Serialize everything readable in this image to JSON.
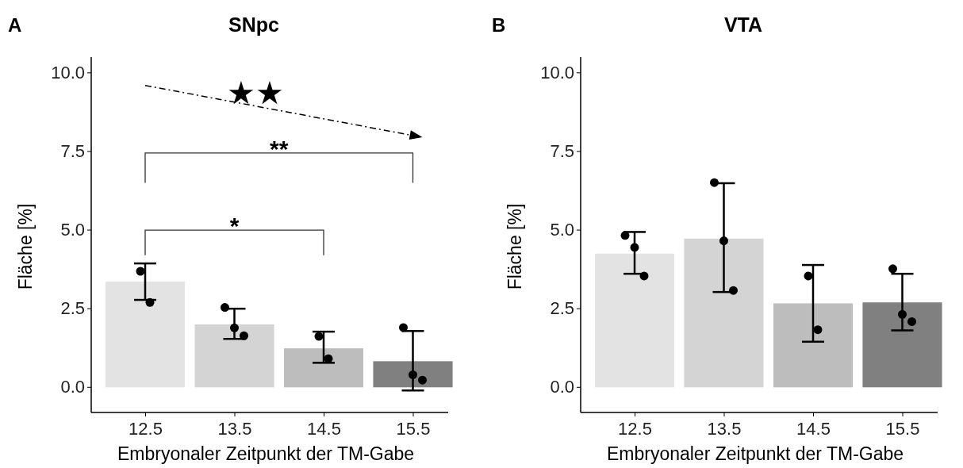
{
  "chart_data": [
    {
      "type": "bar",
      "title": "SNpc",
      "xlabel": "Embryonaler Zeitpunkt der TM-Gabe",
      "ylabel": "Fläche [%]",
      "categories": [
        "12.5",
        "13.5",
        "14.5",
        "15.5"
      ],
      "series": [
        {
          "type": "bar",
          "values": [
            3.36,
            2.0,
            1.24,
            0.83
          ],
          "colors": [
            "#e3e3e3",
            "#d4d4d4",
            "#bdbdbd",
            "#808080"
          ],
          "errors": [
            [
              2.78,
              3.94
            ],
            [
              1.54,
              2.5
            ],
            [
              0.78,
              1.77
            ],
            [
              -0.1,
              1.79
            ]
          ]
        },
        {
          "type": "scatter",
          "color": "#000000",
          "x": [
            "12.5",
            "12.5",
            "13.5",
            "13.5",
            "13.5",
            "14.5",
            "14.5",
            "15.5",
            "15.5",
            "15.5"
          ],
          "values": [
            3.69,
            2.7,
            2.54,
            1.89,
            1.64,
            1.62,
            0.91,
            1.9,
            0.4,
            0.23
          ]
        }
      ],
      "ylim": [
        -0.8,
        10.5
      ],
      "yticks": [
        {
          "value": 0,
          "label": "0.0"
        },
        {
          "value": 2.5,
          "label": "2.5"
        },
        {
          "value": 5,
          "label": "5.0"
        },
        {
          "value": 7.5,
          "label": "7.5"
        },
        {
          "value": 10,
          "label": "10.0"
        }
      ],
      "grid": false,
      "marker": "circle",
      "annotations": [
        "A",
        "★★",
        "**",
        "*"
      ]
    },
    {
      "type": "bar",
      "title": "VTA",
      "xlabel": "Embryonaler Zeitpunkt der TM-Gabe",
      "ylabel": "Fläche [%]",
      "categories": [
        "12.5",
        "13.5",
        "14.5",
        "15.5"
      ],
      "series": [
        {
          "type": "bar",
          "values": [
            4.25,
            4.73,
            2.67,
            2.7
          ],
          "colors": [
            "#e3e3e3",
            "#d4d4d4",
            "#bdbdbd",
            "#808080"
          ],
          "errors": [
            [
              3.61,
              4.94
            ],
            [
              3.03,
              6.49
            ],
            [
              1.45,
              3.89
            ],
            [
              1.81,
              3.61
            ]
          ]
        },
        {
          "type": "scatter",
          "color": "#000000",
          "x": [
            "12.5",
            "12.5",
            "12.5",
            "13.5",
            "13.5",
            "13.5",
            "14.5",
            "14.5",
            "15.5",
            "15.5",
            "15.5"
          ],
          "values": [
            4.83,
            4.45,
            3.54,
            6.51,
            4.66,
            3.08,
            3.54,
            1.83,
            3.77,
            2.32,
            2.09
          ]
        }
      ],
      "ylim": [
        -0.8,
        10.5
      ],
      "yticks": [
        {
          "value": 0,
          "label": "0.0"
        },
        {
          "value": 2.5,
          "label": "2.5"
        },
        {
          "value": 5,
          "label": "5.0"
        },
        {
          "value": 7.5,
          "label": "7.5"
        },
        {
          "value": 10,
          "label": "10.0"
        }
      ],
      "grid": false,
      "marker": "circle",
      "annotations": [
        "B"
      ]
    }
  ]
}
